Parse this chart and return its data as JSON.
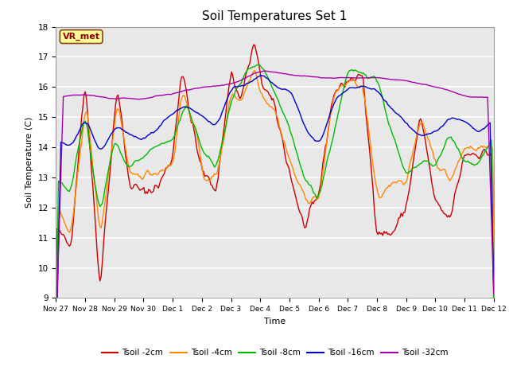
{
  "title": "Soil Temperatures Set 1",
  "xlabel": "Time",
  "ylabel": "Soil Temperature (C)",
  "ylim": [
    9.0,
    18.0
  ],
  "yticks": [
    9.0,
    10.0,
    11.0,
    12.0,
    13.0,
    14.0,
    15.0,
    16.0,
    17.0,
    18.0
  ],
  "line_colors": {
    "2cm": "#cc0000",
    "4cm": "#ff8800",
    "8cm": "#00bb00",
    "16cm": "#0000cc",
    "32cm": "#aa00aa"
  },
  "legend_labels": [
    "Tsoil -2cm",
    "Tsoil -4cm",
    "Tsoil -8cm",
    "Tsoil -16cm",
    "Tsoil -32cm"
  ],
  "xtick_labels": [
    "Nov 27",
    "Nov 28",
    "Nov 29",
    "Nov 30",
    "Dec 1",
    "Dec 2",
    "Dec 3",
    "Dec 4",
    "Dec 5",
    "Dec 6",
    "Dec 7",
    "Dec 8",
    "Dec 9",
    "Dec 10",
    "Dec 11",
    "Dec 12"
  ],
  "annotation_text": "VR_met",
  "annotation_color": "#8b0000",
  "annotation_bg": "#ffff99",
  "annotation_border": "#8b4513"
}
